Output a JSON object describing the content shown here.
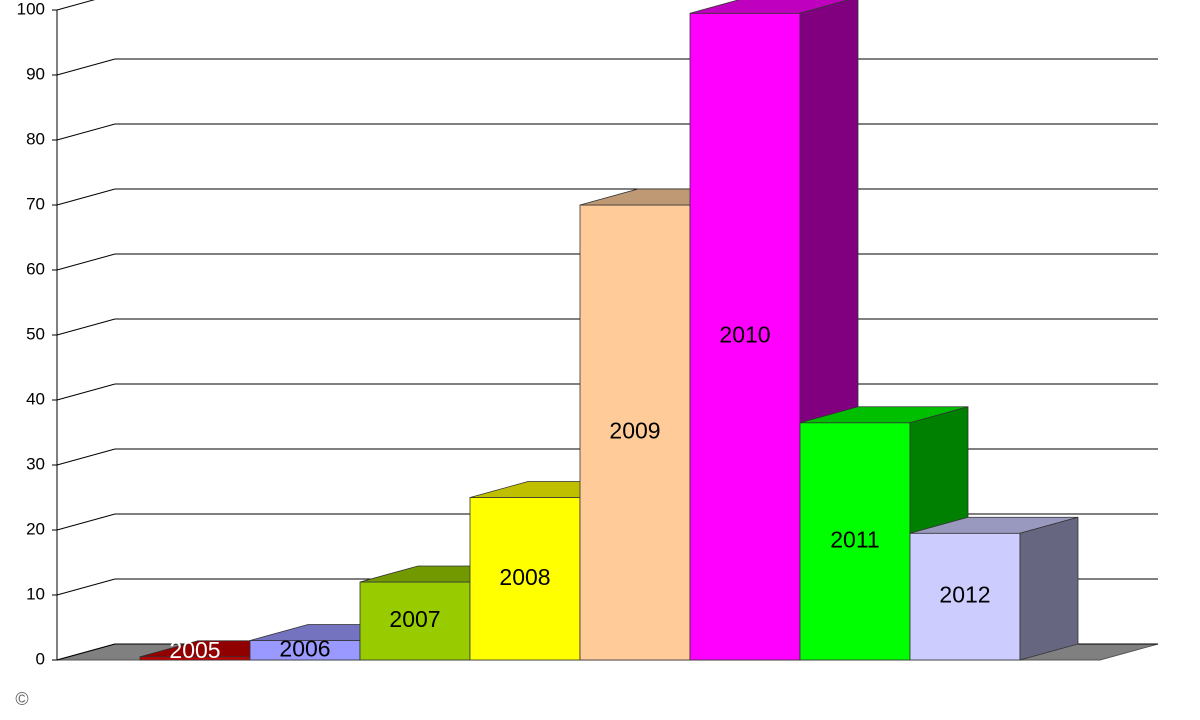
{
  "chart_data": {
    "type": "bar3d",
    "categories": [
      "2005",
      "2006",
      "2007",
      "2008",
      "2009",
      "2010",
      "2011",
      "2012"
    ],
    "values": [
      0.5,
      3,
      12,
      25,
      70,
      99.5,
      36.5,
      19.5
    ],
    "colors": [
      "#c00000",
      "#9999ff",
      "#99cc00",
      "#ffff00",
      "#ffcc99",
      "#ff00ff",
      "#00ff00",
      "#ccccff"
    ],
    "ylim": [
      0,
      100
    ],
    "yticks": [
      0,
      10,
      20,
      30,
      40,
      50,
      60,
      70,
      80,
      90,
      100
    ],
    "grid": true,
    "footnote": "©"
  }
}
